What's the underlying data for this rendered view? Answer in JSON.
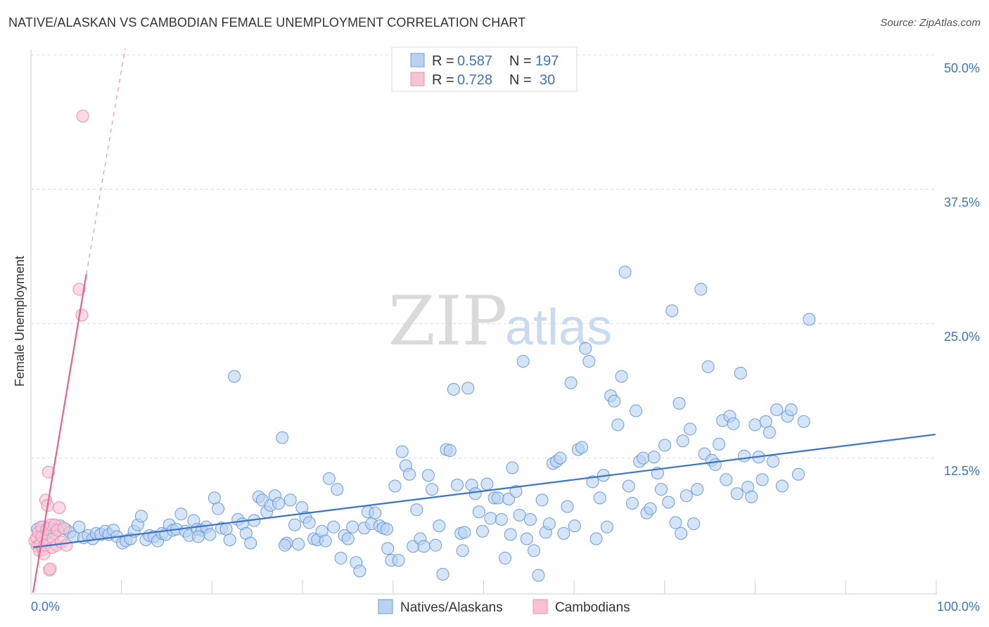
{
  "title": "NATIVE/ALASKAN VS CAMBODIAN FEMALE UNEMPLOYMENT CORRELATION CHART",
  "source": "Source: ZipAtlas.com",
  "watermark": {
    "zip": "ZIP",
    "atlas": "atlas"
  },
  "colors": {
    "blue": "#3b74c6",
    "blue_fill": "#b9d2f2",
    "blue_stroke": "#6a9ddb",
    "pink": "#e8628f",
    "pink_fill": "#f7c3d3",
    "pink_stroke": "#ee8fae",
    "grid": "#dcdcdc"
  },
  "legend": {
    "rows": [
      {
        "r_label": "R =",
        "r_value": "0.587",
        "n_label": "N =",
        "n_value": "197"
      },
      {
        "r_label": "R =",
        "r_value": "0.728",
        "n_label": "N =",
        "n_value": "30"
      }
    ]
  },
  "chart_data": {
    "type": "scatter",
    "title": "NATIVE/ALASKAN VS CAMBODIAN FEMALE UNEMPLOYMENT CORRELATION CHART",
    "xlabel": "",
    "ylabel": "Female Unemployment",
    "xlim": [
      0,
      100
    ],
    "ylim": [
      0,
      50
    ],
    "x_tick_labels": [
      "0.0%",
      "100.0%"
    ],
    "y_ticks": [
      12.5,
      25.0,
      37.5,
      50.0
    ],
    "y_tick_labels": [
      "12.5%",
      "25.0%",
      "37.5%",
      "50.0%"
    ],
    "grid": true,
    "legend_position": "top-center",
    "series": [
      {
        "name": "Natives/Alaskans",
        "color": "#b9d2f2",
        "trend": {
          "x": [
            0,
            100
          ],
          "y": [
            4.2,
            14.7
          ]
        },
        "points": [
          [
            0.5,
            5.9
          ],
          [
            0.8,
            5.3
          ],
          [
            1.1,
            6.1
          ],
          [
            1.4,
            5.4
          ],
          [
            1.9,
            6.0
          ],
          [
            2.4,
            5.5
          ],
          [
            3.0,
            6.2
          ],
          [
            3.6,
            5.9
          ],
          [
            4.1,
            5.6
          ],
          [
            4.5,
            5.2
          ],
          [
            5.1,
            6.1
          ],
          [
            5.6,
            5.1
          ],
          [
            6.1,
            5.3
          ],
          [
            6.6,
            5.0
          ],
          [
            7.0,
            5.5
          ],
          [
            7.5,
            5.4
          ],
          [
            8.0,
            5.7
          ],
          [
            8.4,
            5.4
          ],
          [
            8.9,
            5.8
          ],
          [
            9.3,
            5.2
          ],
          [
            9.9,
            4.6
          ],
          [
            10.3,
            4.8
          ],
          [
            10.8,
            5.0
          ],
          [
            11.2,
            5.7
          ],
          [
            11.6,
            6.3
          ],
          [
            12.0,
            7.1
          ],
          [
            12.5,
            4.9
          ],
          [
            12.9,
            5.3
          ],
          [
            13.4,
            5.2
          ],
          [
            13.8,
            4.8
          ],
          [
            14.3,
            5.5
          ],
          [
            14.7,
            5.4
          ],
          [
            15.1,
            6.3
          ],
          [
            15.5,
            5.8
          ],
          [
            15.9,
            5.9
          ],
          [
            16.4,
            7.3
          ],
          [
            16.9,
            5.7
          ],
          [
            17.3,
            5.3
          ],
          [
            17.8,
            6.7
          ],
          [
            18.2,
            5.9
          ],
          [
            18.7,
            5.8
          ],
          [
            19.2,
            6.1
          ],
          [
            19.6,
            5.4
          ],
          [
            20.1,
            8.8
          ],
          [
            20.5,
            7.8
          ],
          [
            20.9,
            6.0
          ],
          [
            21.4,
            5.9
          ],
          [
            21.8,
            4.9
          ],
          [
            22.3,
            20.1
          ],
          [
            22.7,
            6.8
          ],
          [
            23.2,
            6.4
          ],
          [
            23.6,
            5.5
          ],
          [
            24.1,
            4.6
          ],
          [
            24.5,
            6.7
          ],
          [
            25.0,
            8.9
          ],
          [
            25.4,
            8.6
          ],
          [
            25.9,
            7.5
          ],
          [
            26.3,
            8.1
          ],
          [
            26.8,
            9.0
          ],
          [
            27.2,
            8.3
          ],
          [
            27.6,
            14.4
          ],
          [
            28.1,
            4.6
          ],
          [
            28.5,
            8.6
          ],
          [
            29.0,
            6.3
          ],
          [
            29.4,
            4.5
          ],
          [
            29.8,
            7.9
          ],
          [
            30.2,
            7.0
          ],
          [
            30.6,
            6.5
          ],
          [
            31.1,
            5.0
          ],
          [
            31.5,
            4.9
          ],
          [
            32.0,
            5.7
          ],
          [
            32.4,
            4.8
          ],
          [
            32.8,
            10.6
          ],
          [
            33.3,
            6.1
          ],
          [
            33.7,
            9.6
          ],
          [
            34.1,
            3.2
          ],
          [
            34.5,
            5.3
          ],
          [
            34.9,
            5.0
          ],
          [
            35.4,
            6.1
          ],
          [
            35.8,
            2.8
          ],
          [
            36.2,
            2.0
          ],
          [
            36.7,
            6.0
          ],
          [
            37.1,
            7.5
          ],
          [
            37.5,
            6.4
          ],
          [
            37.9,
            7.4
          ],
          [
            38.4,
            6.2
          ],
          [
            38.8,
            6.0
          ],
          [
            39.2,
            5.9
          ],
          [
            39.7,
            3.0
          ],
          [
            40.1,
            9.9
          ],
          [
            40.5,
            3.0
          ],
          [
            40.9,
            13.1
          ],
          [
            41.3,
            11.8
          ],
          [
            41.7,
            11.0
          ],
          [
            42.1,
            4.3
          ],
          [
            42.5,
            7.7
          ],
          [
            42.9,
            5.0
          ],
          [
            43.3,
            4.3
          ],
          [
            43.8,
            10.9
          ],
          [
            44.2,
            9.6
          ],
          [
            44.6,
            4.4
          ],
          [
            45.0,
            6.2
          ],
          [
            45.4,
            1.7
          ],
          [
            45.8,
            13.3
          ],
          [
            46.2,
            13.2
          ],
          [
            46.6,
            18.9
          ],
          [
            47.0,
            10.0
          ],
          [
            47.4,
            5.5
          ],
          [
            47.8,
            5.6
          ],
          [
            48.2,
            19.0
          ],
          [
            48.6,
            10.0
          ],
          [
            49.0,
            9.2
          ],
          [
            49.4,
            7.5
          ],
          [
            49.8,
            5.7
          ],
          [
            50.3,
            10.1
          ],
          [
            50.7,
            6.9
          ],
          [
            51.1,
            8.8
          ],
          [
            51.5,
            8.8
          ],
          [
            51.9,
            6.8
          ],
          [
            52.3,
            3.2
          ],
          [
            52.7,
            8.7
          ],
          [
            53.1,
            11.6
          ],
          [
            53.5,
            9.4
          ],
          [
            53.9,
            7.2
          ],
          [
            54.3,
            21.5
          ],
          [
            54.7,
            5.0
          ],
          [
            55.1,
            6.8
          ],
          [
            55.5,
            3.9
          ],
          [
            56.0,
            1.6
          ],
          [
            56.4,
            8.6
          ],
          [
            56.8,
            5.6
          ],
          [
            57.2,
            6.4
          ],
          [
            57.6,
            12.0
          ],
          [
            58.0,
            12.2
          ],
          [
            58.4,
            12.5
          ],
          [
            58.8,
            5.5
          ],
          [
            59.2,
            8.0
          ],
          [
            59.6,
            19.5
          ],
          [
            60.0,
            6.2
          ],
          [
            60.4,
            13.3
          ],
          [
            60.8,
            13.5
          ],
          [
            61.2,
            22.7
          ],
          [
            61.6,
            21.5
          ],
          [
            62.0,
            10.3
          ],
          [
            62.4,
            5.0
          ],
          [
            62.8,
            8.8
          ],
          [
            63.2,
            10.9
          ],
          [
            63.6,
            6.1
          ],
          [
            64.0,
            18.3
          ],
          [
            64.4,
            17.8
          ],
          [
            64.8,
            15.6
          ],
          [
            65.2,
            20.1
          ],
          [
            65.6,
            29.8
          ],
          [
            66.0,
            9.9
          ],
          [
            66.4,
            8.3
          ],
          [
            66.8,
            16.9
          ],
          [
            67.2,
            12.2
          ],
          [
            67.6,
            12.5
          ],
          [
            68.0,
            7.4
          ],
          [
            68.4,
            7.8
          ],
          [
            68.8,
            12.6
          ],
          [
            69.2,
            11.1
          ],
          [
            69.6,
            9.6
          ],
          [
            70.0,
            13.7
          ],
          [
            70.4,
            8.4
          ],
          [
            70.8,
            26.2
          ],
          [
            71.2,
            6.5
          ],
          [
            71.6,
            17.6
          ],
          [
            72.0,
            14.1
          ],
          [
            72.4,
            9.0
          ],
          [
            72.8,
            15.2
          ],
          [
            73.2,
            6.4
          ],
          [
            73.6,
            9.6
          ],
          [
            74.0,
            28.2
          ],
          [
            74.4,
            12.9
          ],
          [
            74.8,
            21.0
          ],
          [
            75.2,
            12.3
          ],
          [
            75.6,
            11.9
          ],
          [
            76.0,
            13.8
          ],
          [
            76.4,
            16.0
          ],
          [
            76.8,
            10.5
          ],
          [
            77.2,
            16.4
          ],
          [
            77.6,
            15.7
          ],
          [
            78.0,
            9.2
          ],
          [
            78.4,
            20.4
          ],
          [
            78.8,
            12.7
          ],
          [
            79.2,
            9.8
          ],
          [
            79.6,
            8.9
          ],
          [
            80.0,
            15.6
          ],
          [
            80.4,
            12.6
          ],
          [
            80.8,
            10.5
          ],
          [
            81.2,
            15.9
          ],
          [
            81.6,
            14.9
          ],
          [
            82.0,
            12.2
          ],
          [
            82.4,
            17.0
          ],
          [
            83.0,
            9.9
          ],
          [
            83.6,
            16.4
          ],
          [
            84.0,
            17.0
          ],
          [
            84.8,
            11.0
          ],
          [
            85.4,
            15.9
          ],
          [
            86.0,
            25.4
          ],
          [
            71.8,
            5.5
          ],
          [
            52.9,
            5.4
          ],
          [
            47.6,
            3.9
          ],
          [
            39.3,
            4.1
          ],
          [
            27.9,
            4.4
          ],
          [
            18.3,
            5.2
          ]
        ]
      },
      {
        "name": "Cambodians",
        "color": "#f7c3d3",
        "trend": {
          "x": [
            0,
            5.9
          ],
          "y": [
            0,
            29.6
          ]
        },
        "trend_dashed": {
          "x": [
            5.9,
            10.2
          ],
          "y": [
            29.6,
            50.6
          ]
        },
        "points": [
          [
            0.2,
            4.8
          ],
          [
            0.4,
            5.1
          ],
          [
            0.5,
            4.3
          ],
          [
            0.6,
            5.6
          ],
          [
            0.7,
            3.9
          ],
          [
            0.8,
            4.5
          ],
          [
            0.9,
            6.1
          ],
          [
            1.0,
            5.2
          ],
          [
            1.1,
            4.0
          ],
          [
            1.2,
            3.6
          ],
          [
            1.3,
            4.4
          ],
          [
            1.4,
            8.6
          ],
          [
            1.5,
            5.9
          ],
          [
            1.6,
            8.1
          ],
          [
            1.7,
            11.2
          ],
          [
            1.8,
            2.1
          ],
          [
            1.9,
            2.2
          ],
          [
            2.0,
            6.3
          ],
          [
            2.1,
            4.2
          ],
          [
            2.2,
            5.0
          ],
          [
            2.4,
            6.3
          ],
          [
            2.6,
            4.4
          ],
          [
            2.7,
            5.8
          ],
          [
            2.9,
            7.9
          ],
          [
            3.1,
            4.7
          ],
          [
            3.4,
            6.0
          ],
          [
            3.7,
            4.4
          ],
          [
            5.1,
            28.2
          ],
          [
            5.4,
            25.8
          ],
          [
            5.5,
            44.3
          ]
        ]
      }
    ]
  }
}
